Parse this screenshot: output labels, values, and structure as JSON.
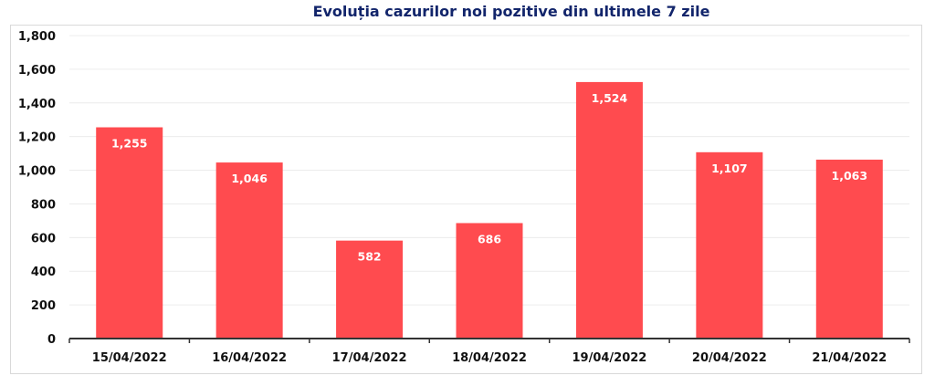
{
  "chart_data": {
    "type": "bar",
    "title": "Evoluția cazurilor noi pozitive din ultimele 7 zile",
    "xlabel": "",
    "ylabel": "",
    "categories": [
      "15/04/2022",
      "16/04/2022",
      "17/04/2022",
      "18/04/2022",
      "19/04/2022",
      "20/04/2022",
      "21/04/2022"
    ],
    "values": [
      1255,
      1046,
      582,
      686,
      1524,
      1107,
      1063
    ],
    "data_labels": [
      "1,255",
      "1,046",
      "582",
      "686",
      "1,524",
      "1,107",
      "1,063"
    ],
    "ylim": [
      0,
      1800
    ],
    "yticks": [
      0,
      200,
      400,
      600,
      800,
      1000,
      1200,
      1400,
      1600,
      1800
    ],
    "ytick_labels": [
      "0",
      "200",
      "400",
      "600",
      "800",
      "1,000",
      "1,200",
      "1,400",
      "1,600",
      "1,800"
    ],
    "grid": true,
    "bar_color": "#ff4b4f",
    "title_color": "#12256b"
  }
}
